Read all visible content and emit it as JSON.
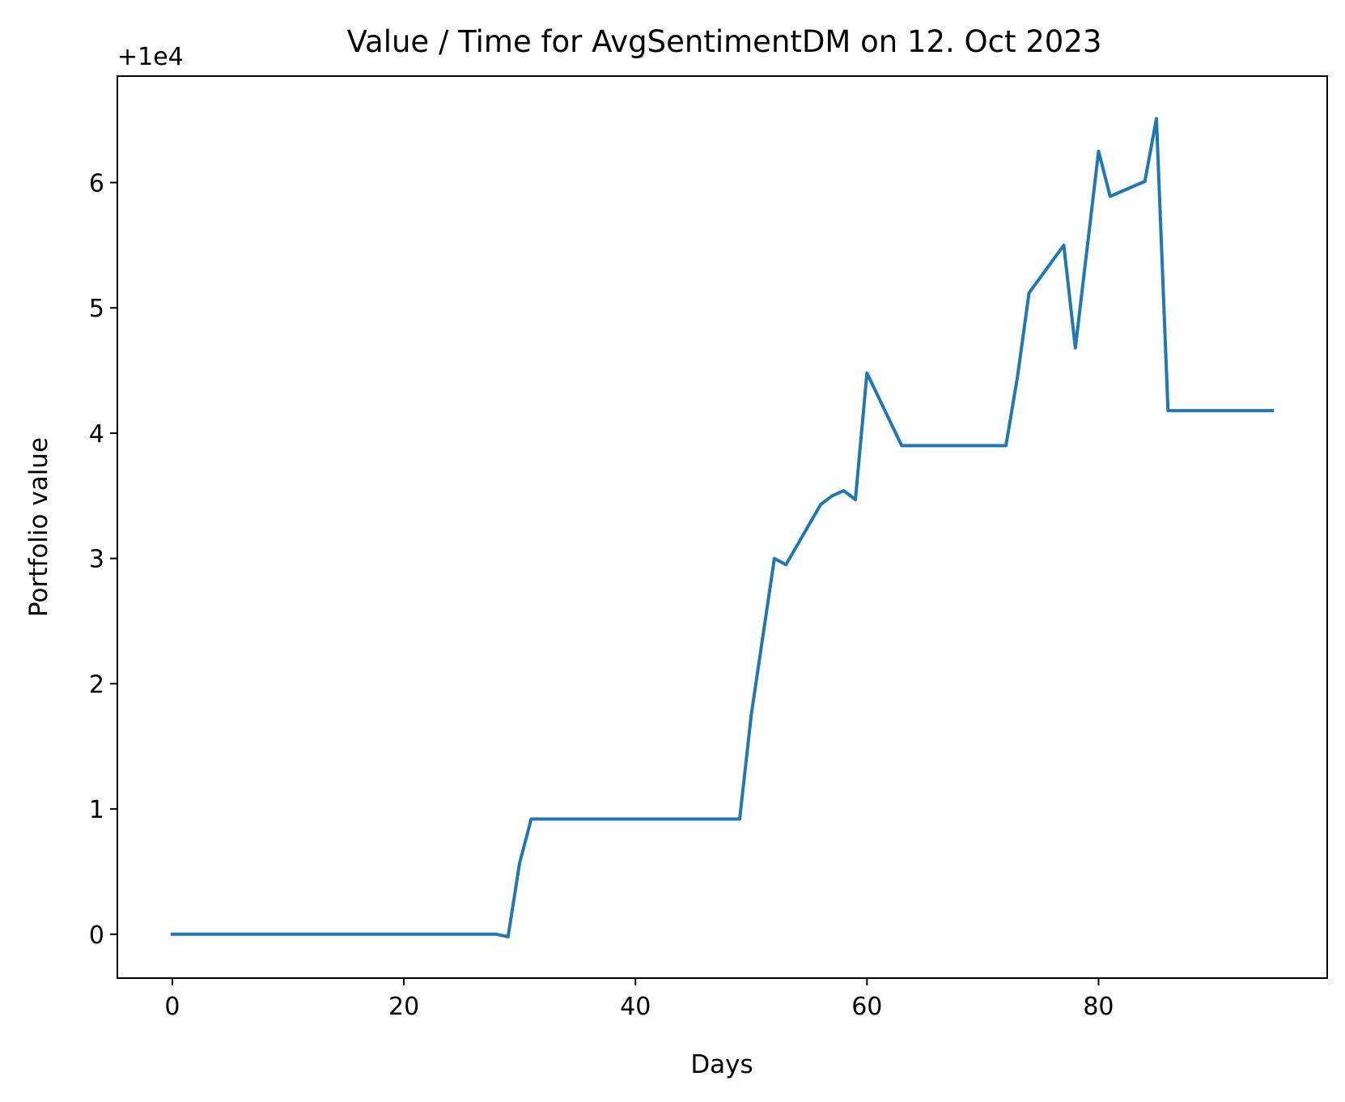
{
  "chart_data": {
    "type": "line",
    "title": "Value / Time for AvgSentimentDM on 12. Oct 2023",
    "xlabel": "Days",
    "ylabel": "Portfolio value",
    "y_offset_label": "+1e4",
    "xlim": [
      -4.75,
      99.75
    ],
    "ylim": [
      -0.35,
      6.85
    ],
    "xticks": [
      0,
      20,
      40,
      60,
      80
    ],
    "yticks": [
      0,
      1,
      2,
      3,
      4,
      5,
      6
    ],
    "grid": false,
    "line_color": "#1f77b4",
    "series": [
      {
        "x": [
          0,
          28,
          29,
          30,
          31,
          49,
          50,
          52,
          53,
          56,
          57,
          58,
          59,
          60,
          63,
          72,
          73,
          74,
          77,
          78,
          80,
          81,
          84,
          85,
          86,
          95
        ],
        "y": [
          0,
          0,
          -0.02,
          0.57,
          0.92,
          0.92,
          1.75,
          3.0,
          2.95,
          3.43,
          3.5,
          3.54,
          3.47,
          4.48,
          3.9,
          3.9,
          4.45,
          5.12,
          5.5,
          4.68,
          6.25,
          5.89,
          6.01,
          6.51,
          4.18,
          4.18
        ]
      }
    ]
  }
}
